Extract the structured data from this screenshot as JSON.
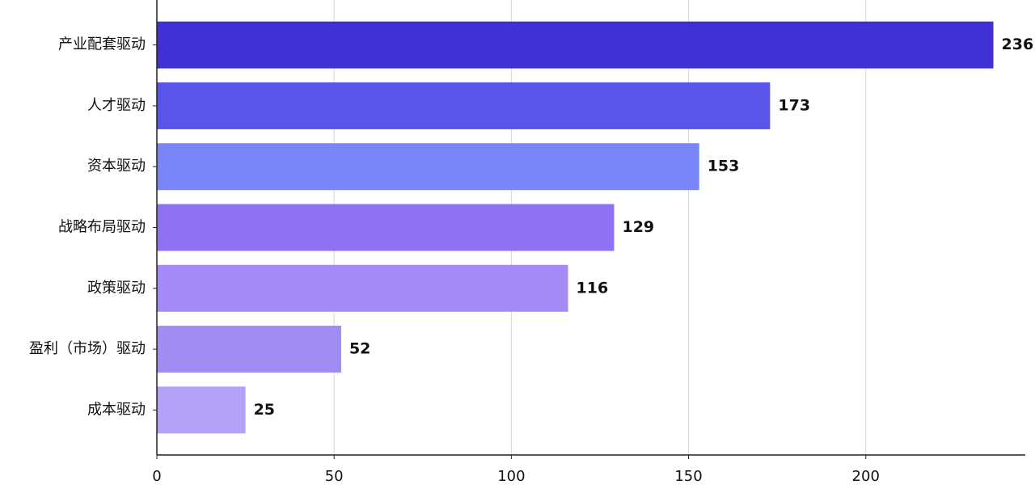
{
  "chart_data": {
    "type": "bar",
    "orientation": "horizontal",
    "categories": [
      "产业配套驱动",
      "人才驱动",
      "资本驱动",
      "战略布局驱动",
      "政策驱动",
      "盈利（市场）驱动",
      "成本驱动"
    ],
    "values": [
      236,
      173,
      153,
      129,
      116,
      52,
      25
    ],
    "colors": [
      "#4130d4",
      "#5a55ea",
      "#7a86f8",
      "#8e72f3",
      "#a48af6",
      "#a18cf2",
      "#b3a0f7"
    ],
    "xlim": [
      0,
      245
    ],
    "xticks": [
      0,
      50,
      100,
      150,
      200
    ],
    "grid": true
  }
}
